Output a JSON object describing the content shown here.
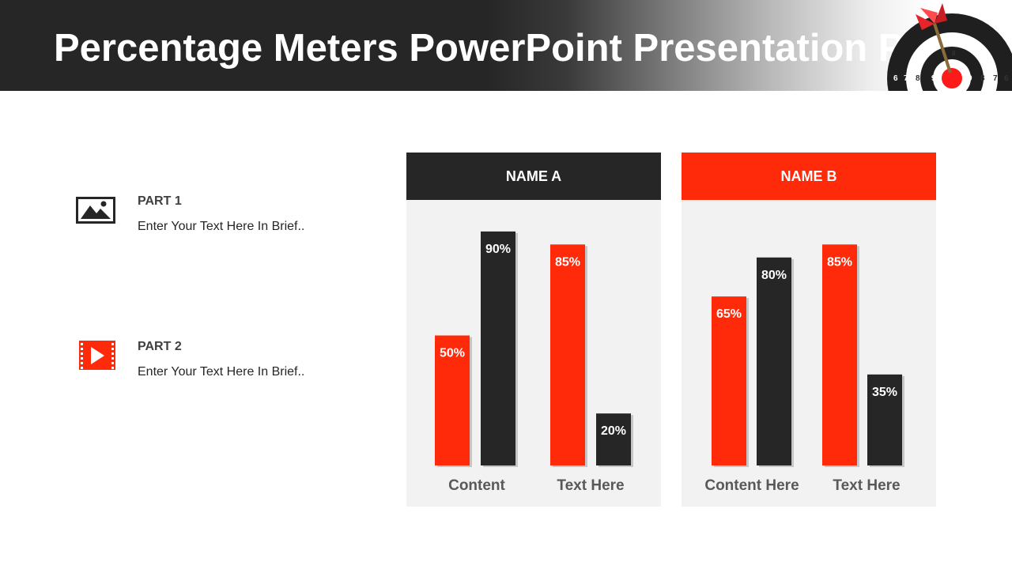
{
  "header": {
    "title": "Percentage Meters PowerPoint Presentation PPT",
    "target_numbers": [
      "6",
      "7",
      "8",
      "9",
      "9",
      "8",
      "7",
      "6",
      "6",
      "7",
      "8"
    ]
  },
  "parts": [
    {
      "title": "PART 1",
      "text": "Enter Your Text Here In Brief..",
      "icon": "image-icon"
    },
    {
      "title": "PART 2",
      "text": "Enter Your Text Here In Brief..",
      "icon": "video-icon"
    }
  ],
  "colors": {
    "red": "#ff2a0a",
    "dark": "#262626",
    "panel_bg": "#f2f2f2"
  },
  "chart_data": [
    {
      "type": "bar",
      "title": "NAME A",
      "categories": [
        "Content",
        "Text Here"
      ],
      "bars": [
        {
          "category": "Content",
          "value": 50,
          "label": "50%",
          "color": "red"
        },
        {
          "category": "Content",
          "value": 90,
          "label": "90%",
          "color": "dark"
        },
        {
          "category": "Text Here",
          "value": 85,
          "label": "85%",
          "color": "red"
        },
        {
          "category": "Text Here",
          "value": 20,
          "label": "20%",
          "color": "dark"
        }
      ],
      "ylim": [
        0,
        100
      ]
    },
    {
      "type": "bar",
      "title": "NAME B",
      "categories": [
        "Content Here",
        "Text Here"
      ],
      "bars": [
        {
          "category": "Content Here",
          "value": 65,
          "label": "65%",
          "color": "red"
        },
        {
          "category": "Content Here",
          "value": 80,
          "label": "80%",
          "color": "dark"
        },
        {
          "category": "Text Here",
          "value": 85,
          "label": "85%",
          "color": "red"
        },
        {
          "category": "Text Here",
          "value": 35,
          "label": "35%",
          "color": "dark"
        }
      ],
      "ylim": [
        0,
        100
      ]
    }
  ]
}
